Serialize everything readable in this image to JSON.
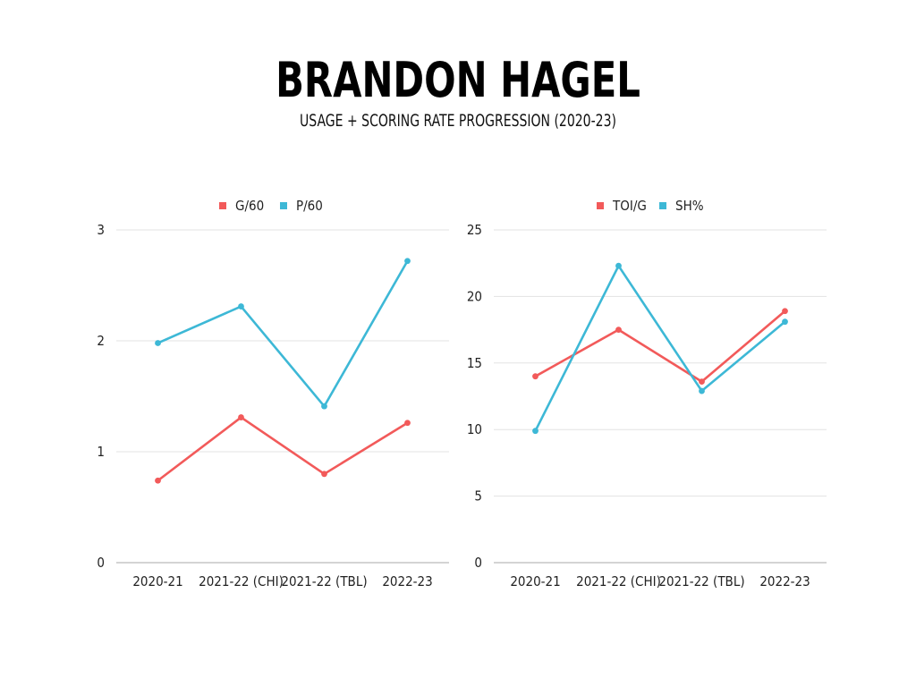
{
  "header": {
    "title": "BRANDON HAGEL",
    "subtitle": "USAGE + SCORING RATE PROGRESSION (2020-23)"
  },
  "colors": {
    "red": "#f25a5a",
    "blue": "#3db8d6",
    "grid": "#e3e3e3",
    "axis": "#a8a8a8"
  },
  "chart_data": [
    {
      "type": "line",
      "categories": [
        "2020-21",
        "2021-22 (CHI)",
        "2021-22 (TBL)",
        "2022-23"
      ],
      "series": [
        {
          "name": "G/60",
          "color": "#f25a5a",
          "values": [
            0.74,
            1.31,
            0.8,
            1.26
          ]
        },
        {
          "name": "P/60",
          "color": "#3db8d6",
          "values": [
            1.98,
            2.31,
            1.41,
            2.72
          ]
        }
      ],
      "ylim": [
        0,
        3
      ],
      "yticks": [
        0,
        1,
        2,
        3
      ],
      "grid": true,
      "legend": "top"
    },
    {
      "type": "line",
      "categories": [
        "2020-21",
        "2021-22 (CHI)",
        "2021-22 (TBL)",
        "2022-23"
      ],
      "series": [
        {
          "name": "TOI/G",
          "color": "#f25a5a",
          "values": [
            14.0,
            17.5,
            13.6,
            18.9
          ]
        },
        {
          "name": "SH%",
          "color": "#3db8d6",
          "values": [
            9.9,
            22.3,
            12.9,
            18.1
          ]
        }
      ],
      "ylim": [
        0,
        25
      ],
      "yticks": [
        0,
        5,
        10,
        15,
        20,
        25
      ],
      "grid": true,
      "legend": "top"
    }
  ]
}
